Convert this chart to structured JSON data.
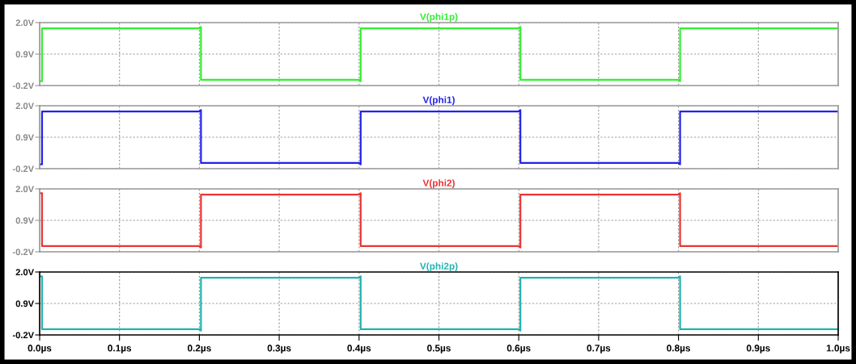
{
  "chart_data": [
    {
      "type": "line",
      "xlim": [
        0,
        1
      ],
      "ylim": [
        -0.2,
        2.0
      ],
      "grid": true,
      "tick_labels": "y",
      "xticks": [
        {
          "value": 0,
          "label": null
        },
        {
          "value": 0.1,
          "label": null
        },
        {
          "value": 0.2,
          "label": null
        },
        {
          "value": 0.3,
          "label": null
        },
        {
          "value": 0.4,
          "label": null
        },
        {
          "value": 0.5,
          "label": null
        },
        {
          "value": 0.6,
          "label": null
        },
        {
          "value": 0.7,
          "label": null
        },
        {
          "value": 0.8,
          "label": null
        },
        {
          "value": 0.9,
          "label": null
        },
        {
          "value": 1.0,
          "label": null
        }
      ],
      "yticks": [
        {
          "value": -0.2,
          "label": "-0.2V"
        },
        {
          "value": 0.9,
          "label": "0.9V"
        },
        {
          "value": 2.0,
          "label": "2.0V"
        }
      ],
      "series": [
        {
          "name": "V(phi1p)",
          "color": "#33ee33",
          "x": [
            0,
            0.003,
            0.003,
            0.2,
            0.202,
            0.202,
            0.4,
            0.402,
            0.402,
            0.6,
            0.602,
            0.602,
            0.8,
            0.802,
            0.802,
            1.0
          ],
          "values": [
            -0.05,
            -0.05,
            1.8,
            1.8,
            1.85,
            0,
            0,
            -0.05,
            1.8,
            1.8,
            1.85,
            0,
            0,
            -0.05,
            1.8,
            1.8
          ]
        }
      ]
    },
    {
      "type": "line",
      "xlim": [
        0,
        1
      ],
      "ylim": [
        -0.2,
        2.0
      ],
      "grid": true,
      "tick_labels": "y",
      "xticks": [
        {
          "value": 0,
          "label": null
        },
        {
          "value": 0.1,
          "label": null
        },
        {
          "value": 0.2,
          "label": null
        },
        {
          "value": 0.3,
          "label": null
        },
        {
          "value": 0.4,
          "label": null
        },
        {
          "value": 0.5,
          "label": null
        },
        {
          "value": 0.6,
          "label": null
        },
        {
          "value": 0.7,
          "label": null
        },
        {
          "value": 0.8,
          "label": null
        },
        {
          "value": 0.9,
          "label": null
        },
        {
          "value": 1.0,
          "label": null
        }
      ],
      "yticks": [
        {
          "value": -0.2,
          "label": "-0.2V"
        },
        {
          "value": 0.9,
          "label": "0.9V"
        },
        {
          "value": 2.0,
          "label": "2.0V"
        }
      ],
      "series": [
        {
          "name": "V(phi1)",
          "color": "#2222ee",
          "x": [
            0,
            0.003,
            0.003,
            0.2,
            0.202,
            0.202,
            0.4,
            0.402,
            0.402,
            0.6,
            0.602,
            0.602,
            0.8,
            0.802,
            0.802,
            1.0
          ],
          "values": [
            -0.05,
            -0.05,
            1.8,
            1.8,
            1.85,
            0,
            0,
            -0.05,
            1.8,
            1.8,
            1.85,
            0,
            0,
            -0.05,
            1.8,
            1.8
          ]
        }
      ]
    },
    {
      "type": "line",
      "xlim": [
        0,
        1
      ],
      "ylim": [
        -0.2,
        2.0
      ],
      "grid": true,
      "tick_labels": "y",
      "xticks": [
        {
          "value": 0,
          "label": null
        },
        {
          "value": 0.1,
          "label": null
        },
        {
          "value": 0.2,
          "label": null
        },
        {
          "value": 0.3,
          "label": null
        },
        {
          "value": 0.4,
          "label": null
        },
        {
          "value": 0.5,
          "label": null
        },
        {
          "value": 0.6,
          "label": null
        },
        {
          "value": 0.7,
          "label": null
        },
        {
          "value": 0.8,
          "label": null
        },
        {
          "value": 0.9,
          "label": null
        },
        {
          "value": 1.0,
          "label": null
        }
      ],
      "yticks": [
        {
          "value": -0.2,
          "label": "-0.2V"
        },
        {
          "value": 0.9,
          "label": "0.9V"
        },
        {
          "value": 2.0,
          "label": "2.0V"
        }
      ],
      "series": [
        {
          "name": "V(phi2)",
          "color": "#ee3333",
          "x": [
            0,
            0.003,
            0.003,
            0.2,
            0.202,
            0.202,
            0.4,
            0.402,
            0.402,
            0.6,
            0.602,
            0.602,
            0.8,
            0.802,
            0.802,
            1.0
          ],
          "values": [
            1.85,
            1.85,
            0,
            0,
            -0.05,
            1.8,
            1.8,
            1.85,
            0,
            0,
            -0.05,
            1.8,
            1.8,
            1.85,
            0,
            0
          ]
        }
      ]
    },
    {
      "type": "line",
      "xlim": [
        0,
        1
      ],
      "ylim": [
        -0.2,
        2.0
      ],
      "grid": true,
      "xticks": [
        {
          "value": 0,
          "label": "0.0µs"
        },
        {
          "value": 0.1,
          "label": "0.1µs"
        },
        {
          "value": 0.2,
          "label": "0.2µs"
        },
        {
          "value": 0.3,
          "label": "0.3µs"
        },
        {
          "value": 0.4,
          "label": "0.4µs"
        },
        {
          "value": 0.5,
          "label": "0.5µs"
        },
        {
          "value": 0.6,
          "label": "0.6µs"
        },
        {
          "value": 0.7,
          "label": "0.7µs"
        },
        {
          "value": 0.8,
          "label": "0.8µs"
        },
        {
          "value": 0.9,
          "label": "0.9µs"
        },
        {
          "value": 1.0,
          "label": "1.0µs"
        }
      ],
      "yticks": [
        {
          "value": -0.2,
          "label": "-0.2V"
        },
        {
          "value": 0.9,
          "label": "0.9V"
        },
        {
          "value": 2.0,
          "label": "2.0V"
        }
      ],
      "series": [
        {
          "name": "V(phi2p)",
          "color": "#22b2b2",
          "x": [
            0,
            0.003,
            0.003,
            0.2,
            0.202,
            0.202,
            0.4,
            0.402,
            0.402,
            0.6,
            0.602,
            0.602,
            0.8,
            0.802,
            0.802,
            1.0
          ],
          "values": [
            1.85,
            1.85,
            0,
            0,
            -0.05,
            1.8,
            1.8,
            1.85,
            0,
            0,
            -0.05,
            1.8,
            1.8,
            1.85,
            0,
            0
          ]
        }
      ]
    }
  ]
}
